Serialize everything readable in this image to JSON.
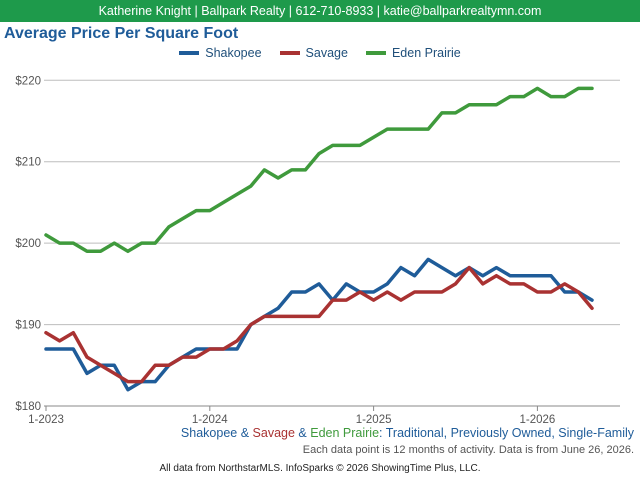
{
  "header": {
    "text": "Katherine Knight | Ballpark Realty | 612-710-8933 | katie@ballparkrealtymn.com"
  },
  "chart_data": {
    "type": "line",
    "title": "Average Price Per Square Foot",
    "ylim": [
      180,
      222
    ],
    "y_ticks": [
      180,
      190,
      200,
      210,
      220
    ],
    "y_tick_labels": [
      "$180",
      "$190",
      "$200",
      "$210",
      "$220"
    ],
    "x_ticks": [
      "1-2023",
      "1-2024",
      "1-2025",
      "1-2026"
    ],
    "x_start": "2023-01",
    "x": [
      "2023-01",
      "2023-02",
      "2023-03",
      "2023-04",
      "2023-05",
      "2023-06",
      "2023-07",
      "2023-08",
      "2023-09",
      "2023-10",
      "2023-11",
      "2023-12",
      "2024-01",
      "2024-02",
      "2024-03",
      "2024-04",
      "2024-05",
      "2024-06",
      "2024-07",
      "2024-08",
      "2024-09",
      "2024-10",
      "2024-11",
      "2024-12",
      "2025-01",
      "2025-02",
      "2025-03",
      "2025-04",
      "2025-05",
      "2025-06",
      "2025-07",
      "2025-08",
      "2025-09",
      "2025-10",
      "2025-11",
      "2025-12",
      "2026-01",
      "2026-02",
      "2026-03",
      "2026-04",
      "2026-05"
    ],
    "grid": true,
    "legend_position": "top-center",
    "series": [
      {
        "name": "Shakopee",
        "color": "#1f5c99",
        "values": [
          187,
          187,
          187,
          184,
          185,
          185,
          182,
          183,
          183,
          185,
          186,
          187,
          187,
          187,
          187,
          190,
          191,
          192,
          194,
          194,
          195,
          193,
          195,
          194,
          194,
          195,
          197,
          196,
          198,
          197,
          196,
          197,
          196,
          197,
          196,
          196,
          196,
          196,
          194,
          194,
          193
        ]
      },
      {
        "name": "Savage",
        "color": "#a93232",
        "values": [
          189,
          188,
          189,
          186,
          185,
          184,
          183,
          183,
          185,
          185,
          186,
          186,
          187,
          187,
          188,
          190,
          191,
          191,
          191,
          191,
          191,
          193,
          193,
          194,
          193,
          194,
          193,
          194,
          194,
          194,
          195,
          197,
          195,
          196,
          195,
          195,
          194,
          194,
          195,
          194,
          192
        ]
      },
      {
        "name": "Eden Prairie",
        "color": "#3f9a3c",
        "values": [
          201,
          200,
          200,
          199,
          199,
          200,
          199,
          200,
          200,
          202,
          203,
          204,
          204,
          205,
          206,
          207,
          209,
          208,
          209,
          209,
          211,
          212,
          212,
          212,
          213,
          214,
          214,
          214,
          214,
          216,
          216,
          217,
          217,
          217,
          218,
          218,
          219,
          218,
          218,
          219,
          219
        ]
      }
    ]
  },
  "subtitle": {
    "s1": "Shakopee",
    "amp1": " & ",
    "s2": "Savage",
    "amp2": " & ",
    "s3": "Eden Prairie",
    "desc": ": Traditional, Previously Owned, Single-Family"
  },
  "note": "Each data point is 12 months of activity. Data is from June 26, 2026.",
  "footer": "All data from NorthstarMLS. InfoSparks © 2026 ShowingTime Plus, LLC."
}
